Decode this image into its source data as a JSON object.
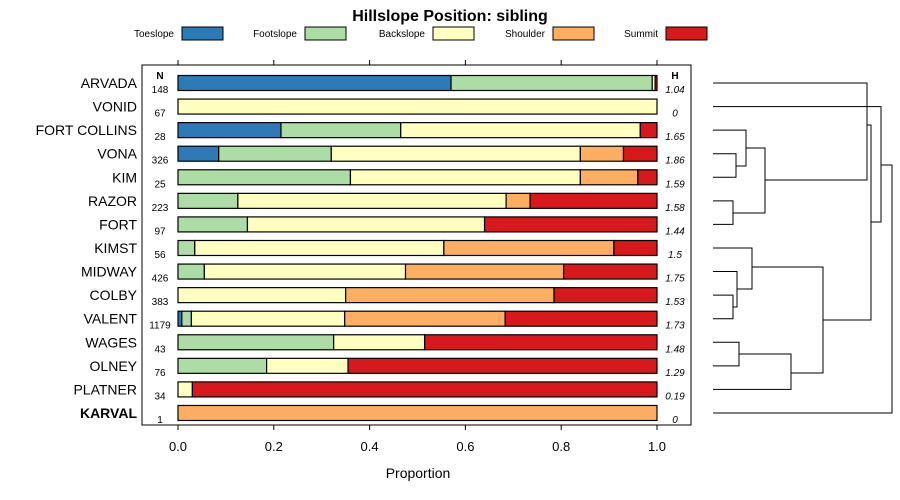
{
  "chart_data": {
    "type": "bar",
    "stacked": true,
    "orientation": "horizontal",
    "title": "Hillslope Position: sibling",
    "xlabel": "Proportion",
    "ylabel": "",
    "xlim": [
      0,
      1
    ],
    "xticks": [
      "0.0",
      "0.2",
      "0.4",
      "0.6",
      "0.8",
      "1.0"
    ],
    "count_header": "N",
    "entropy_header": "H",
    "legend": [
      {
        "name": "Toeslope",
        "color": "#2C7BB6"
      },
      {
        "name": "Footslope",
        "color": "#ABDDA4"
      },
      {
        "name": "Backslope",
        "color": "#FFFFBF"
      },
      {
        "name": "Shoulder",
        "color": "#FDAE61"
      },
      {
        "name": "Summit",
        "color": "#D7191C"
      }
    ],
    "categories": [
      "ARVADA",
      "VONID",
      "FORT COLLINS",
      "VONA",
      "KIM",
      "RAZOR",
      "FORT",
      "KIMST",
      "MIDWAY",
      "COLBY",
      "VALENT",
      "WAGES",
      "OLNEY",
      "PLATNER",
      "KARVAL"
    ],
    "highlight": "KARVAL",
    "counts": [
      "148",
      "67",
      "28",
      "326",
      "25",
      "223",
      "97",
      "56",
      "426",
      "383",
      "1179",
      "43",
      "76",
      "34",
      "1"
    ],
    "entropy": [
      "1.04",
      "0",
      "1.65",
      "1.86",
      "1.59",
      "1.58",
      "1.44",
      "1.5",
      "1.75",
      "1.53",
      "1.73",
      "1.48",
      "1.29",
      "0.19",
      "0"
    ],
    "series": [
      {
        "name": "Toeslope",
        "values": [
          0.57,
          0,
          0.215,
          0.085,
          0,
          0,
          0,
          0,
          0,
          0,
          0.008,
          0,
          0,
          0,
          0
        ]
      },
      {
        "name": "Footslope",
        "values": [
          0.42,
          0,
          0.25,
          0.235,
          0.36,
          0.125,
          0.145,
          0.035,
          0.055,
          0,
          0.02,
          0.325,
          0.185,
          0,
          0
        ]
      },
      {
        "name": "Backslope",
        "values": [
          0.006,
          1.0,
          0.5,
          0.52,
          0.48,
          0.56,
          0.495,
          0.52,
          0.42,
          0.35,
          0.32,
          0.19,
          0.17,
          0.03,
          0
        ]
      },
      {
        "name": "Shoulder",
        "values": [
          0,
          0,
          0,
          0.09,
          0.12,
          0.05,
          0,
          0.355,
          0.33,
          0.435,
          0.335,
          0,
          0,
          0,
          1.0
        ]
      },
      {
        "name": "Summit",
        "values": [
          0.004,
          0,
          0.035,
          0.07,
          0.04,
          0.265,
          0.36,
          0.09,
          0.195,
          0.215,
          0.317,
          0.485,
          0.645,
          0.97,
          0
        ]
      }
    ],
    "dendrogram": {
      "description": "hierarchical clustering of series by composition",
      "merges": [
        [
          "VONA",
          "KIM"
        ],
        [
          "FORT COLLINS",
          "VONA+KIM"
        ],
        [
          "RAZOR",
          "FORT"
        ],
        [
          "FORT COLLINS+VONA+KIM",
          "RAZOR+FORT"
        ],
        [
          "ARVADA",
          "FORT COLLINS+VONA+KIM+RAZOR+FORT"
        ],
        [
          "COLBY",
          "VALENT"
        ],
        [
          "MIDWAY",
          "COLBY+VALENT"
        ],
        [
          "KIMST",
          "MIDWAY+COLBY+VALENT"
        ],
        [
          "WAGES",
          "OLNEY"
        ],
        [
          "WAGES+OLNEY",
          "PLATNER"
        ],
        [
          "KIMST+MIDWAY+COLBY+VALENT",
          "WAGES+OLNEY+PLATNER"
        ],
        [
          "ARVADA+FORT COLLINS+VONA+KIM+RAZOR+FORT",
          "KIMST+MIDWAY+COLBY+VALENT+WAGES+OLNEY+PLATNER"
        ],
        [
          "VONID",
          "ALL_EXCEPT_VONID_KARVAL"
        ],
        [
          "KARVAL",
          "ALL_EXCEPT_KARVAL"
        ]
      ]
    }
  }
}
